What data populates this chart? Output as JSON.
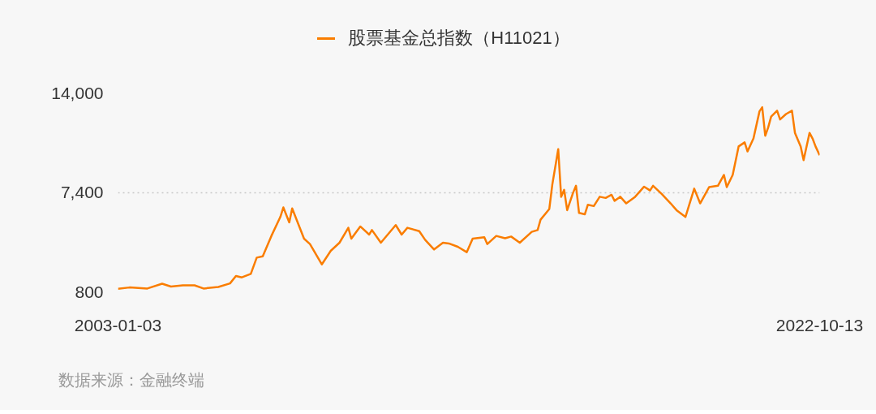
{
  "chart_data": {
    "type": "line",
    "x": [
      "2003-01-03",
      "2003-05",
      "2003-11",
      "2004-04",
      "2004-07",
      "2004-11",
      "2005-03",
      "2005-06",
      "2005-11",
      "2006-03",
      "2006-05",
      "2006-07",
      "2006-10",
      "2006-12",
      "2007-02",
      "2007-05",
      "2007-08",
      "2007-09",
      "2007-11",
      "2007-12",
      "2008-04",
      "2008-06",
      "2008-10",
      "2009-01",
      "2009-04",
      "2009-07",
      "2009-08",
      "2009-11",
      "2010-02",
      "2010-03",
      "2010-06",
      "2010-11",
      "2011-01",
      "2011-03",
      "2011-07",
      "2011-09",
      "2011-12",
      "2012-03",
      "2012-05",
      "2012-08",
      "2012-11",
      "2013-01",
      "2013-05",
      "2013-06",
      "2013-09",
      "2013-12",
      "2014-02",
      "2014-05",
      "2014-09",
      "2014-11",
      "2014-12",
      "2015-03",
      "2015-04",
      "2015-06",
      "2015-07",
      "2015-08",
      "2015-09",
      "2015-11",
      "2015-12",
      "2016-01",
      "2016-03",
      "2016-04",
      "2016-06",
      "2016-08",
      "2016-10",
      "2016-12",
      "2017-01",
      "2017-03",
      "2017-05",
      "2017-08",
      "2017-11",
      "2018-01",
      "2018-02",
      "2018-05",
      "2018-08",
      "2018-10",
      "2019-01",
      "2019-04",
      "2019-06",
      "2019-08",
      "2019-09",
      "2019-12",
      "2020-02",
      "2020-03",
      "2020-05",
      "2020-07",
      "2020-09",
      "2020-10",
      "2020-12",
      "2021-02",
      "2021-03",
      "2021-04",
      "2021-05",
      "2021-06",
      "2021-08",
      "2021-09",
      "2021-11",
      "2022-01",
      "2022-02",
      "2022-04",
      "2022-05",
      "2022-07",
      "2022-08",
      "2022-09",
      "2022-10-13"
    ],
    "series": [
      {
        "name": "股票基金总指数（H11021）",
        "color": "#fa7d00",
        "values": [
          1000,
          1090,
          1020,
          1340,
          1150,
          1230,
          1230,
          1020,
          1120,
          1360,
          1850,
          1760,
          1990,
          3070,
          3160,
          4510,
          5770,
          6400,
          5410,
          6340,
          4330,
          3970,
          2620,
          3520,
          4060,
          5050,
          4330,
          5140,
          4600,
          4900,
          4060,
          5230,
          4600,
          5050,
          4830,
          4240,
          3610,
          4060,
          4010,
          3790,
          3430,
          4330,
          4420,
          3970,
          4510,
          4360,
          4470,
          4060,
          4780,
          4900,
          5590,
          6300,
          7920,
          10270,
          7110,
          7570,
          6220,
          7380,
          7840,
          6040,
          5950,
          6580,
          6490,
          7110,
          7030,
          7240,
          6840,
          7110,
          6670,
          7110,
          7780,
          7530,
          7840,
          7300,
          6670,
          6220,
          5770,
          7650,
          6670,
          7380,
          7750,
          7840,
          8560,
          7750,
          8560,
          10450,
          10720,
          10120,
          10980,
          12780,
          13050,
          11160,
          11700,
          12430,
          12820,
          12240,
          12600,
          12820,
          11350,
          10450,
          9540,
          11350,
          10980,
          10450,
          9870
        ]
      }
    ],
    "xlim": [
      "2003-01-03",
      "2022-10-13"
    ],
    "xticks": [
      "2003-01-03",
      "2022-10-13"
    ],
    "ylim": [
      800,
      14000
    ],
    "yticks": [
      {
        "value": 800,
        "label": "800"
      },
      {
        "value": 7400,
        "label": "7,400"
      },
      {
        "value": 14000,
        "label": "14,000"
      }
    ],
    "grid": "y",
    "legend": "top",
    "annotations": [
      "数据来源：金融终端"
    ]
  }
}
